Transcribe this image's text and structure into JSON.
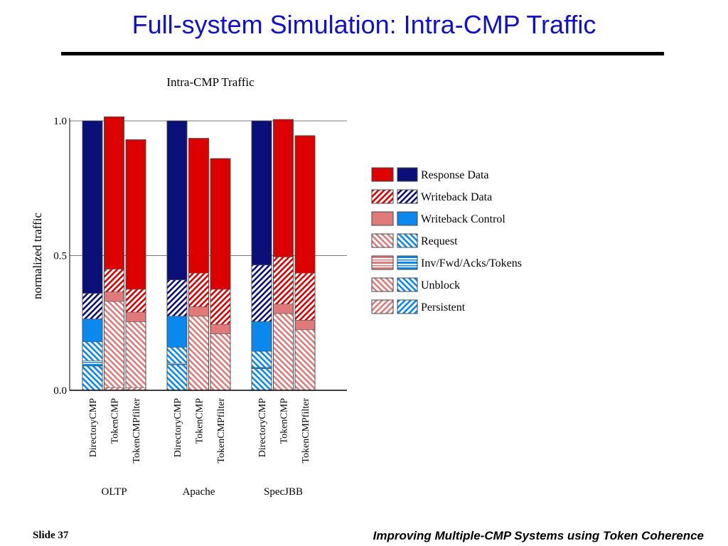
{
  "slide": {
    "title": "Full-system Simulation: Intra-CMP Traffic",
    "slide_number": "Slide 37",
    "footer": "Improving Multiple-CMP Systems using Token Coherence"
  },
  "chart_data": {
    "type": "bar",
    "stacked": true,
    "title": "Intra-CMP Traffic",
    "ylabel": "normalized traffic",
    "ylim": [
      0,
      1.0
    ],
    "yticks": [
      "0.0",
      "0.5",
      "1.0"
    ],
    "grid": true,
    "legend_position": "right",
    "groups": [
      "OLTP",
      "Apache",
      "SpecJBB"
    ],
    "bar_labels": [
      "DirectoryCMP",
      "TokenCMP",
      "TokenCMPfilter"
    ],
    "colors": {
      "token": "#dd0000",
      "token_light": "#e07a7a",
      "directory": "#0a1078",
      "directory_light": "#0a88ee"
    },
    "legend": [
      {
        "label": "Response Data",
        "pattern": "solid",
        "shade": "dark"
      },
      {
        "label": "Writeback Data",
        "pattern": "diag",
        "shade": "dark"
      },
      {
        "label": "Writeback Control",
        "pattern": "solid",
        "shade": "light"
      },
      {
        "label": "Request",
        "pattern": "diag-rev",
        "shade": "light"
      },
      {
        "label": "Inv/Fwd/Acks/Tokens",
        "pattern": "horiz",
        "shade": "light"
      },
      {
        "label": "Unblock",
        "pattern": "diag-rev",
        "shade": "light"
      },
      {
        "label": "Persistent",
        "pattern": "diag",
        "shade": "light"
      }
    ],
    "bars": [
      {
        "group": "OLTP",
        "name": "DirectoryCMP",
        "protocol": "directory",
        "total": 1.0,
        "segments": [
          {
            "type": "Request",
            "value": 0.09
          },
          {
            "type": "Inv/Fwd/Acks/Tokens",
            "value": 0.02
          },
          {
            "type": "Unblock",
            "value": 0.07
          },
          {
            "type": "Writeback Control",
            "value": 0.085
          },
          {
            "type": "Writeback Data",
            "value": 0.095
          },
          {
            "type": "Response Data",
            "value": 0.64
          }
        ]
      },
      {
        "group": "OLTP",
        "name": "TokenCMP",
        "protocol": "token",
        "total": 1.015,
        "segments": [
          {
            "type": "Persistent",
            "value": 0.01
          },
          {
            "type": "Request",
            "value": 0.32
          },
          {
            "type": "Writeback Control",
            "value": 0.035
          },
          {
            "type": "Writeback Data",
            "value": 0.085
          },
          {
            "type": "Response Data",
            "value": 0.565
          }
        ]
      },
      {
        "group": "OLTP",
        "name": "TokenCMPfilter",
        "protocol": "token",
        "total": 0.93,
        "segments": [
          {
            "type": "Persistent",
            "value": 0.01
          },
          {
            "type": "Request",
            "value": 0.245
          },
          {
            "type": "Writeback Control",
            "value": 0.035
          },
          {
            "type": "Writeback Data",
            "value": 0.085
          },
          {
            "type": "Response Data",
            "value": 0.555
          }
        ]
      },
      {
        "group": "Apache",
        "name": "DirectoryCMP",
        "protocol": "directory",
        "total": 1.0,
        "segments": [
          {
            "type": "Request",
            "value": 0.095
          },
          {
            "type": "Inv/Fwd/Acks/Tokens",
            "value": 0.005
          },
          {
            "type": "Unblock",
            "value": 0.06
          },
          {
            "type": "Writeback Control",
            "value": 0.115
          },
          {
            "type": "Writeback Data",
            "value": 0.135
          },
          {
            "type": "Response Data",
            "value": 0.59
          }
        ]
      },
      {
        "group": "Apache",
        "name": "TokenCMP",
        "protocol": "token",
        "total": 0.935,
        "segments": [
          {
            "type": "Request",
            "value": 0.275
          },
          {
            "type": "Writeback Control",
            "value": 0.035
          },
          {
            "type": "Writeback Data",
            "value": 0.125
          },
          {
            "type": "Response Data",
            "value": 0.5
          }
        ]
      },
      {
        "group": "Apache",
        "name": "TokenCMPfilter",
        "protocol": "token",
        "total": 0.86,
        "segments": [
          {
            "type": "Request",
            "value": 0.21
          },
          {
            "type": "Writeback Control",
            "value": 0.035
          },
          {
            "type": "Writeback Data",
            "value": 0.13
          },
          {
            "type": "Response Data",
            "value": 0.485
          }
        ]
      },
      {
        "group": "SpecJBB",
        "name": "DirectoryCMP",
        "protocol": "directory",
        "total": 1.0,
        "segments": [
          {
            "type": "Request",
            "value": 0.08
          },
          {
            "type": "Inv/Fwd/Acks/Tokens",
            "value": 0.005
          },
          {
            "type": "Unblock",
            "value": 0.06
          },
          {
            "type": "Writeback Control",
            "value": 0.11
          },
          {
            "type": "Writeback Data",
            "value": 0.21
          },
          {
            "type": "Response Data",
            "value": 0.535
          }
        ]
      },
      {
        "group": "SpecJBB",
        "name": "TokenCMP",
        "protocol": "token",
        "total": 1.005,
        "segments": [
          {
            "type": "Request",
            "value": 0.285
          },
          {
            "type": "Writeback Control",
            "value": 0.035
          },
          {
            "type": "Writeback Data",
            "value": 0.175
          },
          {
            "type": "Response Data",
            "value": 0.51
          }
        ]
      },
      {
        "group": "SpecJBB",
        "name": "TokenCMPfilter",
        "protocol": "token",
        "total": 0.945,
        "segments": [
          {
            "type": "Request",
            "value": 0.225
          },
          {
            "type": "Writeback Control",
            "value": 0.035
          },
          {
            "type": "Writeback Data",
            "value": 0.175
          },
          {
            "type": "Response Data",
            "value": 0.51
          }
        ]
      }
    ]
  }
}
